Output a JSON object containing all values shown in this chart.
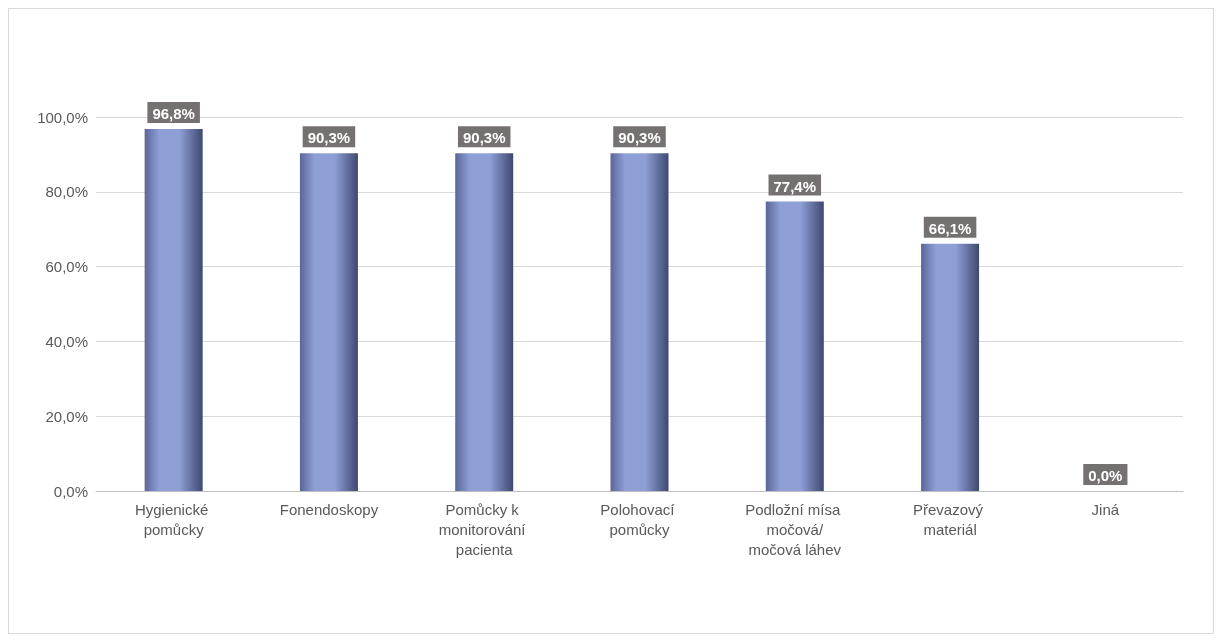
{
  "chart_data": {
    "type": "bar",
    "categories": [
      "Hygienické pomůcky",
      "Fonendoskopy",
      "Pomůcky k monitorování pacienta",
      "Polohovací pomůcky",
      "Podložní mísa močová/močová láhev",
      "Převazový materiál",
      "Jiná"
    ],
    "values": [
      96.8,
      90.3,
      90.3,
      90.3,
      77.4,
      66.1,
      0.0
    ],
    "value_labels": [
      "96,8%",
      "90,3%",
      "90,3%",
      "90,3%",
      "77,4%",
      "66,1%",
      "0,0%"
    ],
    "color": "#8e9fd6",
    "ylim": [
      0,
      100
    ],
    "yticks": [
      {
        "value": 0,
        "label": "0,0%"
      },
      {
        "value": 20,
        "label": "20,0%"
      },
      {
        "value": 40,
        "label": "40,0%"
      },
      {
        "value": 60,
        "label": "60,0%"
      },
      {
        "value": 80,
        "label": "80,0%"
      },
      {
        "value": 100,
        "label": "100,0%"
      }
    ],
    "grid": "y"
  }
}
